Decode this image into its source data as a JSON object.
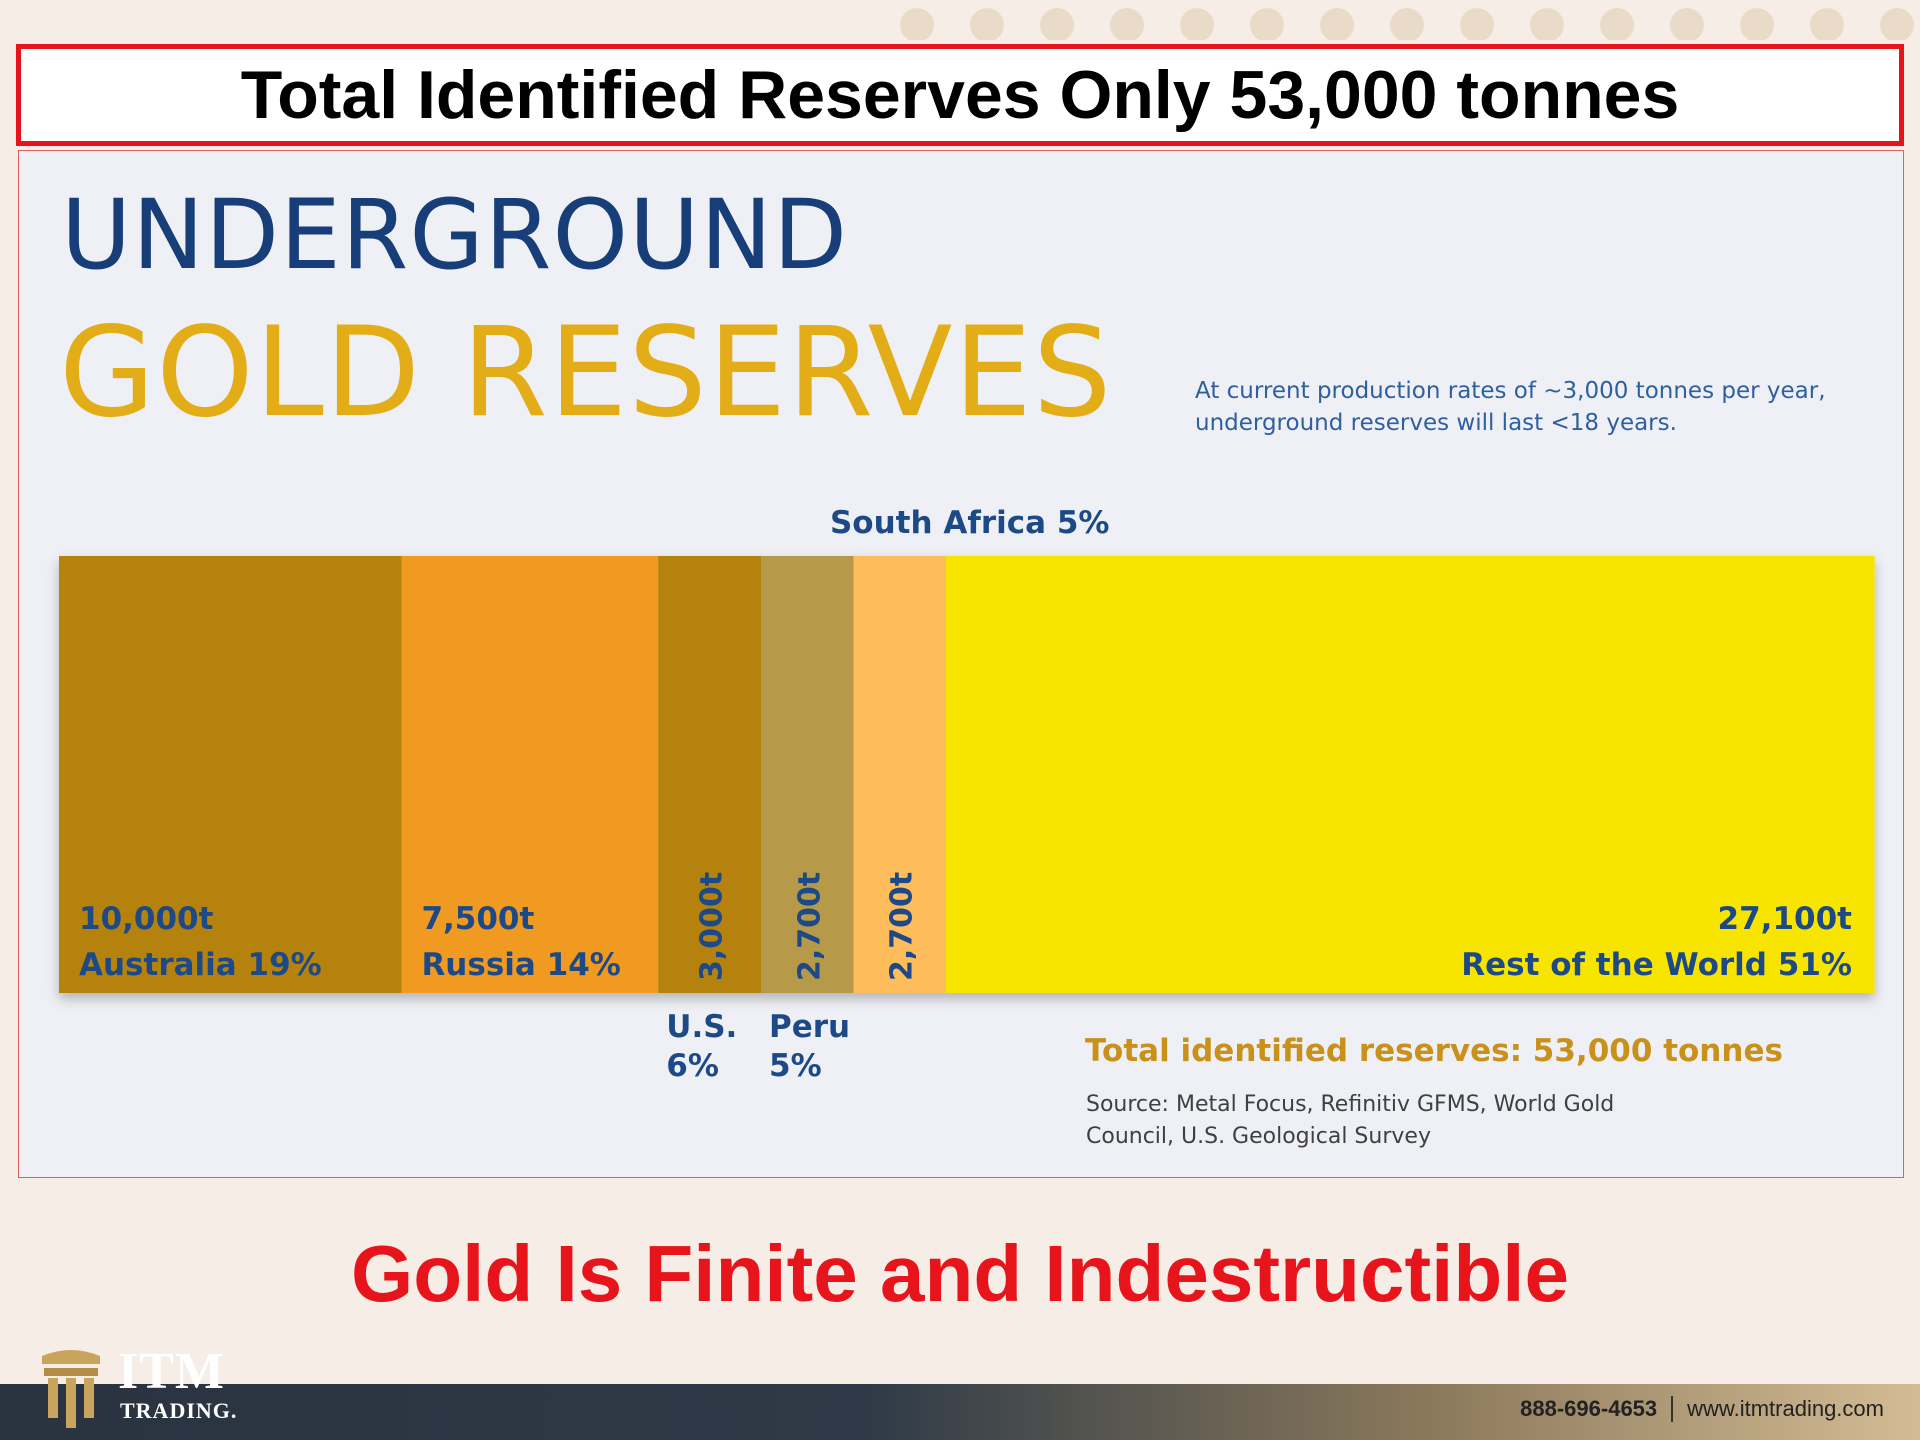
{
  "header": {
    "title": "Total Identified Reserves Only 53,000 tonnes"
  },
  "infographic": {
    "heading_line1": "UNDERGROUND",
    "heading_line2": "GOLD RESERVES",
    "note": "At current production rates of ~3,000 tonnes per year, underground reserves will last <18 years.",
    "total": "Total identified reserves: 53,000 tonnes",
    "source": "Source: Metal Focus, Refinitiv GFMS, World Gold Council, U.S. Geological Survey"
  },
  "chart_data": {
    "type": "bar",
    "orientation": "stacked-horizontal",
    "categories": [
      "Australia",
      "Russia",
      "U.S.",
      "Peru",
      "South Africa",
      "Rest of the World"
    ],
    "values": [
      10000,
      7500,
      3000,
      2700,
      2700,
      27100
    ],
    "unit": "t",
    "value_labels": [
      "10,000t",
      "7,500t",
      "3,000t",
      "2,700t",
      "2,700t",
      "27,100t"
    ],
    "category_labels": [
      "Australia 19%",
      "Russia 14%",
      "U.S.",
      "Peru",
      "South Africa 5%",
      "Rest of the World 51%"
    ],
    "pct_labels": [
      "",
      "",
      "6%",
      "5%",
      "",
      ""
    ],
    "colors": [
      "#b5820f",
      "#f09a22",
      "#b5820f",
      "#b79a4a",
      "#ffbc5a",
      "#f7e503"
    ],
    "title": "",
    "xlabel": "",
    "ylabel": "",
    "grid": false,
    "legend": "none"
  },
  "tagline": "Gold Is Finite and Indestructible",
  "footer": {
    "brand_name": "ITM",
    "brand_sub": "TRADING.",
    "phone": "888-696-4653",
    "website": "www.itmtrading.com"
  }
}
